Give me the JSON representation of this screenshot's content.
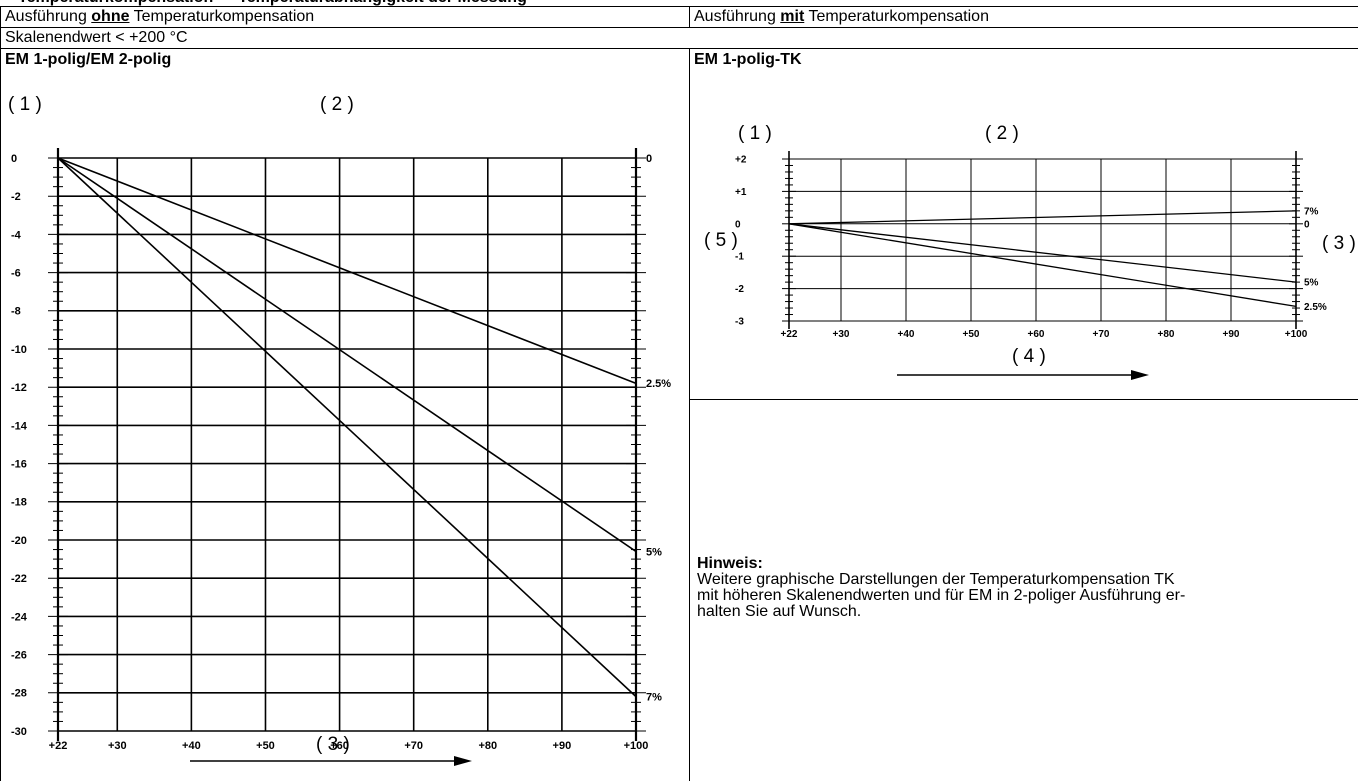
{
  "header": {
    "left_pre": "Ausführung ",
    "left_bold": "ohne",
    "left_post": " Temperaturkompensation",
    "right_pre": "Ausführung ",
    "right_bold": "mit",
    "right_post": " Temperaturkompensation",
    "range": "Skalenendwert < +200 °C"
  },
  "left_section": {
    "title": "EM 1-polig/EM 2-polig",
    "marker_1": "( 1 )",
    "marker_2": "( 2 )",
    "marker_3": "( 3 )"
  },
  "right_section": {
    "title": "EM 1-polig-TK",
    "marker_1": "( 1 )",
    "marker_2": "( 2 )",
    "marker_3": "( 3 )",
    "marker_4": "( 4 )",
    "marker_5": "( 5 )"
  },
  "note": {
    "title": "Hinweis:",
    "line1": "Weitere graphische Darstellungen der Temperaturkompensation TK",
    "line2": "mit höheren Skalenendwerten und für EM in 2-poliger Ausführung er-",
    "line3": "halten Sie auf Wunsch."
  },
  "chart_data": [
    {
      "type": "line",
      "x": [
        22,
        100
      ],
      "xticks": [
        "+22",
        "+30",
        "+40",
        "+50",
        "+60",
        "+70",
        "+80",
        "+90",
        "+100"
      ],
      "xtick_values": [
        22,
        30,
        40,
        50,
        60,
        70,
        80,
        90,
        100
      ],
      "yticks": [
        "0",
        "-2",
        "-4",
        "-6",
        "-8",
        "-10",
        "-12",
        "-14",
        "-16",
        "-18",
        "-20",
        "-22",
        "-24",
        "-26",
        "-28",
        "-30"
      ],
      "ytick_values": [
        0,
        -2,
        -4,
        -6,
        -8,
        -10,
        -12,
        -14,
        -16,
        -18,
        -20,
        -22,
        -24,
        -26,
        -28,
        -30
      ],
      "xlim": [
        22,
        100
      ],
      "ylim": [
        -30,
        0
      ],
      "right_labels": [
        {
          "text": "0",
          "y": 0
        },
        {
          "text": "2.5%",
          "y": -11.8
        },
        {
          "text": "5%",
          "y": -20.6
        },
        {
          "text": "7%",
          "y": -28.2
        }
      ],
      "series": [
        {
          "name": "2.5%",
          "values": [
            0,
            -11.8
          ]
        },
        {
          "name": "5%",
          "values": [
            0,
            -20.6
          ]
        },
        {
          "name": "7%",
          "values": [
            0,
            -28.2
          ]
        }
      ],
      "grid": true
    },
    {
      "type": "line",
      "x": [
        22,
        100
      ],
      "xticks": [
        "+22",
        "+30",
        "+40",
        "+50",
        "+60",
        "+70",
        "+80",
        "+90",
        "+100"
      ],
      "xtick_values": [
        22,
        30,
        40,
        50,
        60,
        70,
        80,
        90,
        100
      ],
      "yticks": [
        "+2",
        "+1",
        "0",
        "-1",
        "-2",
        "-3"
      ],
      "ytick_values": [
        2,
        1,
        0,
        -1,
        -2,
        -3
      ],
      "xlim": [
        22,
        100
      ],
      "ylim": [
        -3,
        2
      ],
      "right_labels": [
        {
          "text": "7%",
          "y": 0.4
        },
        {
          "text": "0",
          "y": 0
        },
        {
          "text": "5%",
          "y": -1.8
        },
        {
          "text": "2.5%",
          "y": -2.55
        }
      ],
      "series": [
        {
          "name": "7%",
          "values": [
            0,
            0.4
          ]
        },
        {
          "name": "5%",
          "values": [
            0,
            -1.8
          ]
        },
        {
          "name": "2.5%",
          "values": [
            0,
            -2.55
          ]
        }
      ],
      "grid": true
    }
  ]
}
